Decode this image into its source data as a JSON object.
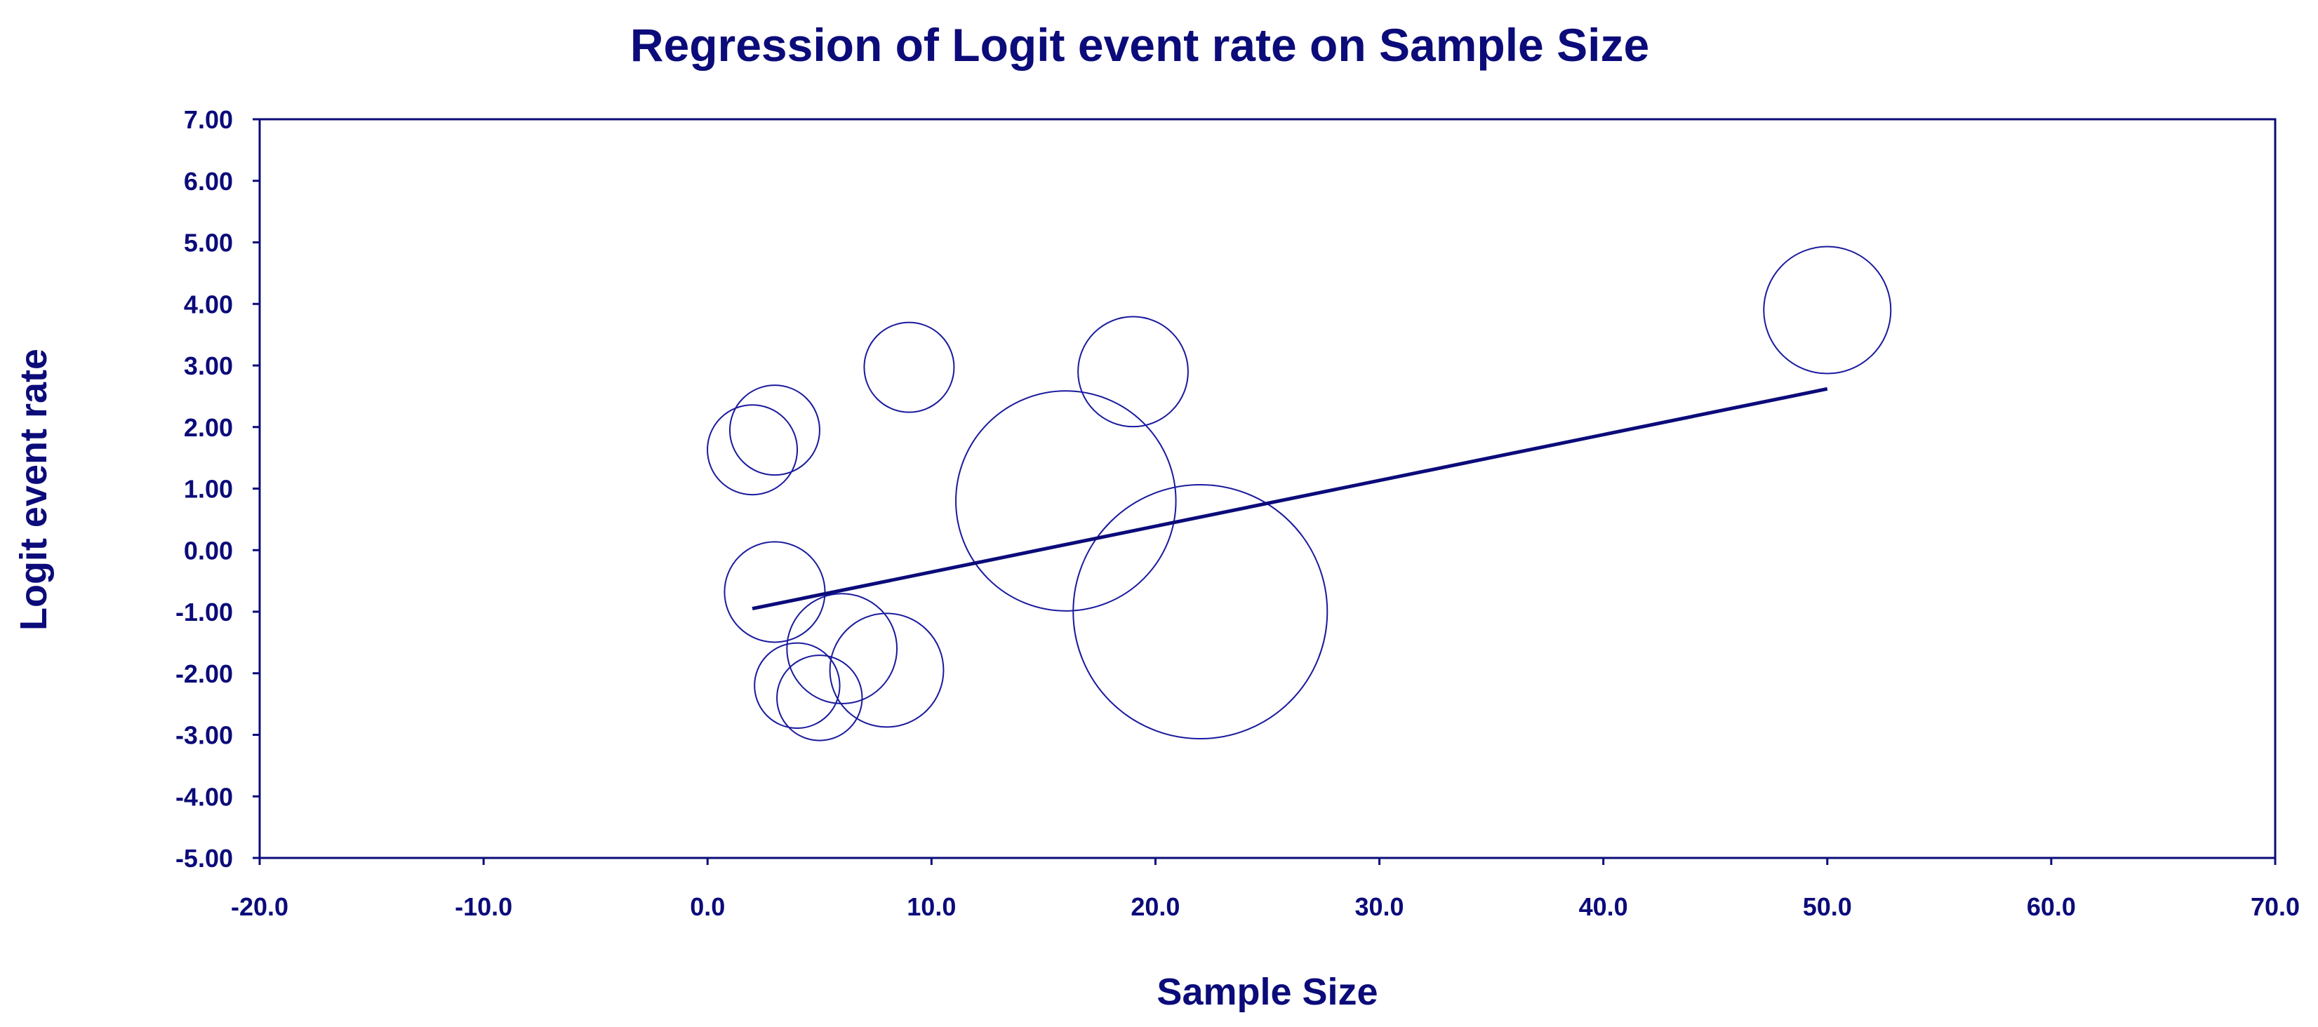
{
  "chart_data": {
    "type": "scatter",
    "title": "Regression of Logit event rate on Sample Size",
    "xlabel": "Sample Size",
    "ylabel": "Logit event rate",
    "xlim": [
      -20,
      70
    ],
    "ylim": [
      -5,
      7
    ],
    "x_ticks": [
      -20,
      -10,
      0,
      10,
      20,
      30,
      40,
      50,
      60,
      70
    ],
    "y_ticks": [
      7,
      6,
      5,
      4,
      3,
      2,
      1,
      0,
      -1,
      -2,
      -3,
      -4,
      -5
    ],
    "x_tick_labels": [
      "-20.0",
      "-10.0",
      "0.0",
      "10.0",
      "20.0",
      "30.0",
      "40.0",
      "50.0",
      "60.0",
      "70.0"
    ],
    "y_tick_labels": [
      "7.00",
      "6.00",
      "5.00",
      "4.00",
      "3.00",
      "2.00",
      "1.00",
      "0.00",
      "-1.00",
      "-2.00",
      "-3.00",
      "-4.00",
      "-5.00"
    ],
    "points": [
      {
        "x": 2,
        "y": 1.63,
        "weight": 1.0
      },
      {
        "x": 3,
        "y": 1.95,
        "weight": 1.0
      },
      {
        "x": 9,
        "y": 2.97,
        "weight": 1.0
      },
      {
        "x": 19,
        "y": 2.9,
        "weight": 1.5
      },
      {
        "x": 50,
        "y": 3.9,
        "weight": 2.0
      },
      {
        "x": 16,
        "y": 0.8,
        "weight": 6.0
      },
      {
        "x": 22,
        "y": -1.0,
        "weight": 8.0
      },
      {
        "x": 3,
        "y": -0.68,
        "weight": 1.25
      },
      {
        "x": 6,
        "y": -1.6,
        "weight": 1.5
      },
      {
        "x": 8,
        "y": -1.95,
        "weight": 1.6
      },
      {
        "x": 4,
        "y": -2.2,
        "weight": 0.9
      },
      {
        "x": 5,
        "y": -2.4,
        "weight": 0.9
      }
    ],
    "regression_line": {
      "x1": 2,
      "y1": -0.95,
      "x2": 50,
      "y2": 2.62
    },
    "colors": {
      "axis": "#0b0b7a",
      "marker": "#1a1a9e",
      "line": "#0b0b7a",
      "text": "#0b0b7a"
    }
  }
}
